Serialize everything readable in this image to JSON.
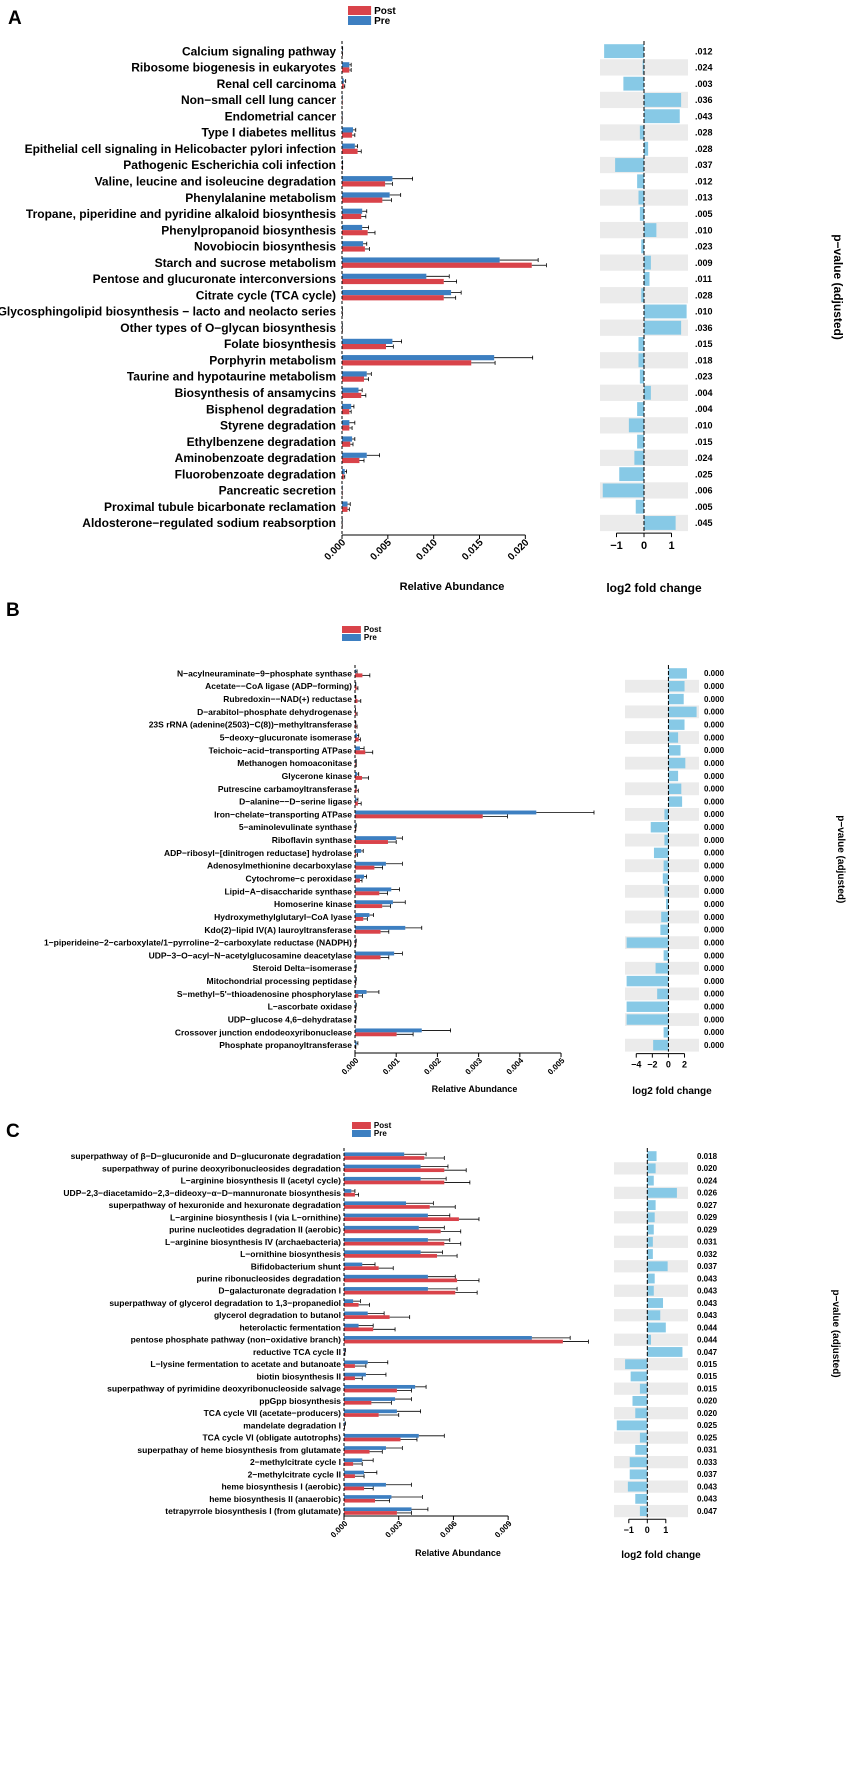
{
  "colors": {
    "post": "#d9434a",
    "pre": "#3d7fc1",
    "fold_bar": "#87c9e6",
    "stripe": "#ebebeb",
    "axis": "#000000",
    "text": "#000000",
    "error_bar": "#000000"
  },
  "chart_data": [
    {
      "type": "bar",
      "panel_label": "A",
      "title": "",
      "legend": [
        "Post",
        "Pre"
      ],
      "legend_position": "top-center",
      "xlabel": "Relative Abundance",
      "xlim": [
        0,
        0.024
      ],
      "xticks": [
        0.0,
        0.005,
        0.01,
        0.015,
        0.02
      ],
      "xtick_labels": [
        "0.000",
        "0.005",
        "0.010",
        "0.015",
        "0.020"
      ],
      "fold_xlabel": "log2 fold change",
      "fold_xlim": [
        -1.6,
        1.6
      ],
      "fold_xticks": [
        -1,
        0,
        1
      ],
      "fold_xtick_labels": [
        "−1",
        "0",
        "1"
      ],
      "pvalue_label": "p−value (adjusted)",
      "categories": [
        "Calcium signaling pathway",
        "Ribosome biogenesis in eukaryotes",
        "Renal cell carcinoma",
        "Non−small cell lung cancer",
        "Endometrial cancer",
        "Type I diabetes mellitus",
        "Epithelial cell signaling in Helicobacter pylori infection",
        "Pathogenic Escherichia coli infection",
        "Valine, leucine and isoleucine degradation",
        "Phenylalanine metabolism",
        "Tropane, piperidine and pyridine alkaloid biosynthesis",
        "Phenylpropanoid biosynthesis",
        "Novobiocin biosynthesis",
        "Starch and sucrose metabolism",
        "Pentose and glucuronate interconversions",
        "Citrate cycle (TCA cycle)",
        "Glycosphingolipid biosynthesis − lacto and neolacto series",
        "Other types of O−glycan biosynthesis",
        "Folate biosynthesis",
        "Porphyrin metabolism",
        "Taurine and hypotaurine metabolism",
        "Biosynthesis of ansamycins",
        "Bisphenol degradation",
        "Styrene degradation",
        "Ethylbenzene degradation",
        "Aminobenzoate degradation",
        "Fluorobenzoate degradation",
        "Pancreatic secretion",
        "Proximal tubule bicarbonate reclamation",
        "Aldosterone−regulated sodium reabsorption"
      ],
      "series": [
        {
          "name": "Pre",
          "values": [
            5e-05,
            0.0008,
            0.0002,
            1e-05,
            1e-05,
            0.0012,
            0.0014,
            5e-05,
            0.0055,
            0.0052,
            0.0022,
            0.0022,
            0.0023,
            0.0172,
            0.0092,
            0.0119,
            3e-05,
            2e-05,
            0.0055,
            0.0166,
            0.0027,
            0.0018,
            0.001,
            0.0008,
            0.0011,
            0.0027,
            0.0003,
            1e-05,
            0.0006,
            1e-05
          ],
          "errors": [
            2e-05,
            0.0002,
            0.0002,
            1e-05,
            1e-05,
            0.0003,
            0.0003,
            2e-05,
            0.0022,
            0.0012,
            0.0005,
            0.0007,
            0.0004,
            0.0042,
            0.0025,
            0.0011,
            1e-05,
            1e-05,
            0.001,
            0.0042,
            0.0005,
            0.0004,
            0.0003,
            0.0006,
            0.0003,
            0.0014,
            0.0002,
            1e-05,
            0.0003,
            1e-05
          ]
        },
        {
          "name": "Post",
          "values": [
            3e-05,
            0.0008,
            0.0002,
            1e-05,
            1e-05,
            0.0011,
            0.0017,
            5e-05,
            0.0047,
            0.0044,
            0.0021,
            0.0028,
            0.0025,
            0.0207,
            0.0111,
            0.0111,
            3e-05,
            2e-05,
            0.0048,
            0.0141,
            0.0024,
            0.0021,
            0.0008,
            0.0008,
            0.0009,
            0.0019,
            0.0002,
            1e-05,
            0.0006,
            1e-05
          ],
          "errors": [
            2e-05,
            0.0002,
            0.0001,
            1e-05,
            1e-05,
            0.0003,
            0.0004,
            2e-05,
            0.0008,
            0.001,
            0.0005,
            0.0008,
            0.0005,
            0.0016,
            0.0014,
            0.0013,
            1e-05,
            1e-05,
            0.0008,
            0.0026,
            0.0005,
            0.0005,
            0.0002,
            0.0003,
            0.0003,
            0.0005,
            0.0001,
            1e-05,
            0.0002,
            1e-05
          ]
        }
      ],
      "log2_fold_change": [
        -1.45,
        -0.05,
        -0.75,
        1.35,
        1.3,
        -0.15,
        0.15,
        -1.05,
        -0.25,
        -0.2,
        -0.15,
        0.45,
        -0.1,
        0.25,
        0.2,
        -0.1,
        1.55,
        1.35,
        -0.2,
        -0.2,
        -0.15,
        0.25,
        -0.25,
        -0.55,
        -0.25,
        -0.35,
        -0.9,
        -1.5,
        -0.3,
        1.15
      ],
      "p_values": [
        ".012",
        ".024",
        ".003",
        ".036",
        ".043",
        ".028",
        ".028",
        ".037",
        ".012",
        ".013",
        ".005",
        ".010",
        ".023",
        ".009",
        ".011",
        ".028",
        ".010",
        ".036",
        ".015",
        ".018",
        ".023",
        ".004",
        ".004",
        ".010",
        ".015",
        ".024",
        ".025",
        ".006",
        ".005",
        ".045"
      ]
    },
    {
      "type": "bar",
      "panel_label": "B",
      "title": "",
      "legend": [
        "Post",
        "Pre"
      ],
      "legend_position": "top-center",
      "xlabel": "Relative Abundance",
      "xlim": [
        0,
        0.0058
      ],
      "xticks": [
        0.0,
        0.001,
        0.002,
        0.003,
        0.004,
        0.005
      ],
      "xtick_labels": [
        "0.000",
        "0.001",
        "0.002",
        "0.003",
        "0.004",
        "0.005"
      ],
      "fold_xlabel": "log2 fold change",
      "fold_xlim": [
        -5.4,
        3.8
      ],
      "fold_xticks": [
        -4,
        -2,
        0,
        2
      ],
      "fold_xtick_labels": [
        "−4",
        "−2",
        "0",
        "2"
      ],
      "pvalue_label": "p−value (adjusted)",
      "categories": [
        "N−acylneuraminate−9−phosphate synthase",
        "Acetate−−CoA ligase (ADP−forming)",
        "Rubredoxin−−NAD(+) reductase",
        "D−arabitol−phosphate dehydrogenase",
        "23S rRNA (adenine(2503)−C(8))−methyltransferase",
        "5−deoxy−glucuronate isomerase",
        "Teichoic−acid−transporting ATPase",
        "Methanogen homoaconitase",
        "Glycerone kinase",
        "Putrescine carbamoyltransferase",
        "D−alanine−−D−serine ligase",
        "Iron−chelate−transporting ATPase",
        "5−aminolevulinate synthase",
        "Riboflavin synthase",
        "ADP−ribosyl−[dinitrogen reductase] hydrolase",
        "Adenosylmethionine decarboxylase",
        "Cytochrome−c peroxidase",
        "Lipid−A−disaccharide synthase",
        "Homoserine kinase",
        "Hydroxymethylglutaryl−CoA lyase",
        "Kdo(2)−lipid IV(A) lauroyltransferase",
        "1−piperideine−2−carboxylate/1−pyrroline−2−carboxylate reductase (NADPH)",
        "UDP−3−O−acyl−N−acetylglucosamine deacetylase",
        "Steroid Delta−isomerase",
        "Mitochondrial processing peptidase",
        "S−methyl−5'−thioadenosine phosphorylase",
        "L−ascorbate oxidase",
        "UDP−glucose 4,6−dehydratase",
        "Crossover junction endodeoxyribonuclease",
        "Phosphate propanoyltransferase"
      ],
      "series": [
        {
          "name": "Pre",
          "values": [
            3e-05,
            1e-05,
            1e-05,
            5e-06,
            1e-05,
            5e-05,
            0.00012,
            2e-05,
            5e-05,
            2e-05,
            4e-05,
            0.0044,
            2e-05,
            0.001,
            0.00015,
            0.00075,
            0.00022,
            0.00088,
            0.00092,
            0.00035,
            0.00122,
            2e-05,
            0.00095,
            2e-05,
            2e-05,
            0.00028,
            2e-05,
            2e-05,
            0.00162,
            4e-05
          ],
          "errors": [
            2e-05,
            1e-05,
            1e-05,
            5e-06,
            1e-05,
            4e-05,
            0.0001,
            1e-05,
            4e-05,
            1e-05,
            3e-05,
            0.0014,
            1e-05,
            0.00015,
            5e-05,
            0.0004,
            6e-05,
            0.0002,
            0.0003,
            0.0001,
            0.0004,
            1e-05,
            0.0002,
            1e-05,
            1e-05,
            0.0003,
            1e-05,
            1e-05,
            0.0007,
            3e-05
          ]
        },
        {
          "name": "Post",
          "values": [
            0.00018,
            4e-05,
            6e-05,
            3e-05,
            3e-05,
            9e-05,
            0.00025,
            2e-05,
            0.00017,
            4e-05,
            7e-05,
            0.0031,
            1e-05,
            0.0008,
            3e-05,
            0.00047,
            0.00012,
            0.00059,
            0.00066,
            0.0002,
            0.00062,
            1e-05,
            0.00062,
            1e-05,
            1e-05,
            8e-05,
            1e-05,
            1e-05,
            0.00101,
            1e-05
          ],
          "errors": [
            0.00018,
            3e-05,
            8e-05,
            2e-05,
            2e-05,
            4e-05,
            0.00018,
            1e-05,
            0.00016,
            4e-05,
            8e-05,
            0.0006,
            1e-05,
            0.0002,
            3e-05,
            0.0002,
            5e-05,
            0.0002,
            0.0002,
            0.0001,
            0.0002,
            1e-05,
            0.0002,
            1e-05,
            1e-05,
            0.0001,
            1e-05,
            1e-05,
            0.0004,
            1e-05
          ]
        }
      ],
      "log2_fold_change": [
        2.3,
        2.0,
        1.9,
        3.5,
        2.0,
        1.2,
        1.5,
        2.1,
        1.2,
        1.6,
        1.7,
        -0.5,
        -2.2,
        -0.5,
        -1.8,
        -0.6,
        -0.7,
        -0.5,
        -0.3,
        -0.9,
        -1.0,
        -5.2,
        -0.6,
        -1.6,
        -5.2,
        -1.4,
        -5.2,
        -5.2,
        -0.6,
        -1.9
      ],
      "p_values": [
        "0.000",
        "0.000",
        "0.000",
        "0.000",
        "0.000",
        "0.000",
        "0.000",
        "0.000",
        "0.000",
        "0.000",
        "0.000",
        "0.000",
        "0.000",
        "0.000",
        "0.000",
        "0.000",
        "0.000",
        "0.000",
        "0.000",
        "0.000",
        "0.000",
        "0.000",
        "0.000",
        "0.000",
        "0.000",
        "0.000",
        "0.000",
        "0.000",
        "0.000",
        "0.000"
      ]
    },
    {
      "type": "bar",
      "panel_label": "C",
      "title": "",
      "legend": [
        "Post",
        "Pre"
      ],
      "legend_position": "top-center",
      "xlabel": "Relative Abundance",
      "xlim": [
        0,
        0.0125
      ],
      "xticks": [
        0.0,
        0.003,
        0.006,
        0.009
      ],
      "xtick_labels": [
        "0.000",
        "0.003",
        "0.006",
        "0.009"
      ],
      "fold_xlabel": "log2 fold change",
      "fold_xlim": [
        -1.8,
        2.2
      ],
      "fold_xticks": [
        -1,
        0,
        1
      ],
      "fold_xtick_labels": [
        "−1",
        "0",
        "1"
      ],
      "pvalue_label": "p−value (adjusted)",
      "categories": [
        "superpathway of &beta;−D−glucuronide and D−glucuronate degradation",
        "superpathway of purine deoxyribonucleosides degradation",
        "L−arginine biosynthesis II (acetyl cycle)",
        "UDP−2,3−diacetamido−2,3−dideoxy−&alpha;−D−mannuronate biosynthesis",
        "superpathway of hexuronide and hexuronate degradation",
        "L−arginine biosynthesis I (via L−ornithine)",
        "purine nucleotides degradation II (aerobic)",
        "L−arginine biosynthesis IV (archaebacteria)",
        "L−ornithine biosynthesis",
        "Bifidobacterium shunt",
        "purine ribonucleosides degradation",
        "D−galacturonate degradation I",
        "superpathway of glycerol degradation to 1,3−propanediol",
        "glycerol degradation to butanol",
        "heterolactic fermentation",
        "pentose phosphate pathway (non−oxidative branch)",
        "reductive TCA cycle II",
        "L−lysine fermentation to acetate and butanoate",
        "biotin biosynthesis II",
        "superpathway of pyrimidine deoxyribonucleoside salvage",
        "ppGpp biosynthesis",
        "TCA cycle VII (acetate−producers)",
        "mandelate degradation I",
        "TCA cycle VI (obligate autotrophs)",
        "superpathay of heme biosynthesis from glutamate",
        "2−methylcitrate cycle I",
        "2−methylcitrate cycle II",
        "heme biosynthesis I (aerobic)",
        "heme biosynthesis II (anaerobic)",
        "tetrapyrrole biosynthesis I (from glutamate)"
      ],
      "series": [
        {
          "name": "Pre",
          "values": [
            0.0033,
            0.0042,
            0.0042,
            0.0004,
            0.0034,
            0.0046,
            0.0041,
            0.0046,
            0.0042,
            0.001,
            0.0046,
            0.0046,
            0.0005,
            0.0013,
            0.0008,
            0.0103,
            5e-05,
            0.0013,
            0.0012,
            0.0039,
            0.0028,
            0.0029,
            5e-05,
            0.0041,
            0.0023,
            0.001,
            0.0011,
            0.0023,
            0.0026,
            0.0037
          ],
          "errors": [
            0.0012,
            0.0015,
            0.0014,
            0.0002,
            0.0015,
            0.0012,
            0.0014,
            0.0012,
            0.0012,
            0.0007,
            0.0015,
            0.0016,
            0.0004,
            0.0009,
            0.0008,
            0.0021,
            3e-05,
            0.0011,
            0.0011,
            0.0006,
            0.0009,
            0.0013,
            3e-05,
            0.0014,
            0.0009,
            0.0006,
            0.0007,
            0.0014,
            0.0017,
            0.0009
          ]
        },
        {
          "name": "Post",
          "values": [
            0.0044,
            0.0055,
            0.0055,
            0.0006,
            0.0047,
            0.0063,
            0.0053,
            0.0055,
            0.0051,
            0.0019,
            0.0062,
            0.0061,
            0.0008,
            0.0025,
            0.0016,
            0.012,
            3e-05,
            0.0006,
            0.0006,
            0.0029,
            0.0015,
            0.0019,
            2e-05,
            0.0031,
            0.0014,
            0.0005,
            0.0006,
            0.0011,
            0.0017,
            0.0029
          ],
          "errors": [
            0.0011,
            0.0012,
            0.0014,
            0.0002,
            0.0014,
            0.0011,
            0.0011,
            0.0009,
            0.0011,
            0.0008,
            0.0012,
            0.0012,
            0.0006,
            0.0011,
            0.0012,
            0.0014,
            2e-05,
            0.0006,
            0.0004,
            0.0008,
            0.0011,
            0.0011,
            1e-05,
            0.0009,
            0.0007,
            0.0005,
            0.0005,
            0.0005,
            0.0008,
            0.0008
          ]
        }
      ],
      "log2_fold_change": [
        0.5,
        0.45,
        0.35,
        1.6,
        0.45,
        0.4,
        0.35,
        0.3,
        0.3,
        1.1,
        0.4,
        0.35,
        0.85,
        0.7,
        1.0,
        0.2,
        1.9,
        -1.2,
        -0.9,
        -0.4,
        -0.8,
        -0.65,
        -1.65,
        -0.4,
        -0.65,
        -0.95,
        -0.95,
        -1.05,
        -0.65,
        -0.4
      ],
      "p_values": [
        "0.018",
        "0.020",
        "0.024",
        "0.026",
        "0.027",
        "0.029",
        "0.029",
        "0.031",
        "0.032",
        "0.037",
        "0.043",
        "0.043",
        "0.043",
        "0.043",
        "0.044",
        "0.044",
        "0.047",
        "0.015",
        "0.015",
        "0.015",
        "0.020",
        "0.020",
        "0.025",
        "0.025",
        "0.031",
        "0.033",
        "0.037",
        "0.043",
        "0.043",
        "0.047"
      ]
    }
  ]
}
